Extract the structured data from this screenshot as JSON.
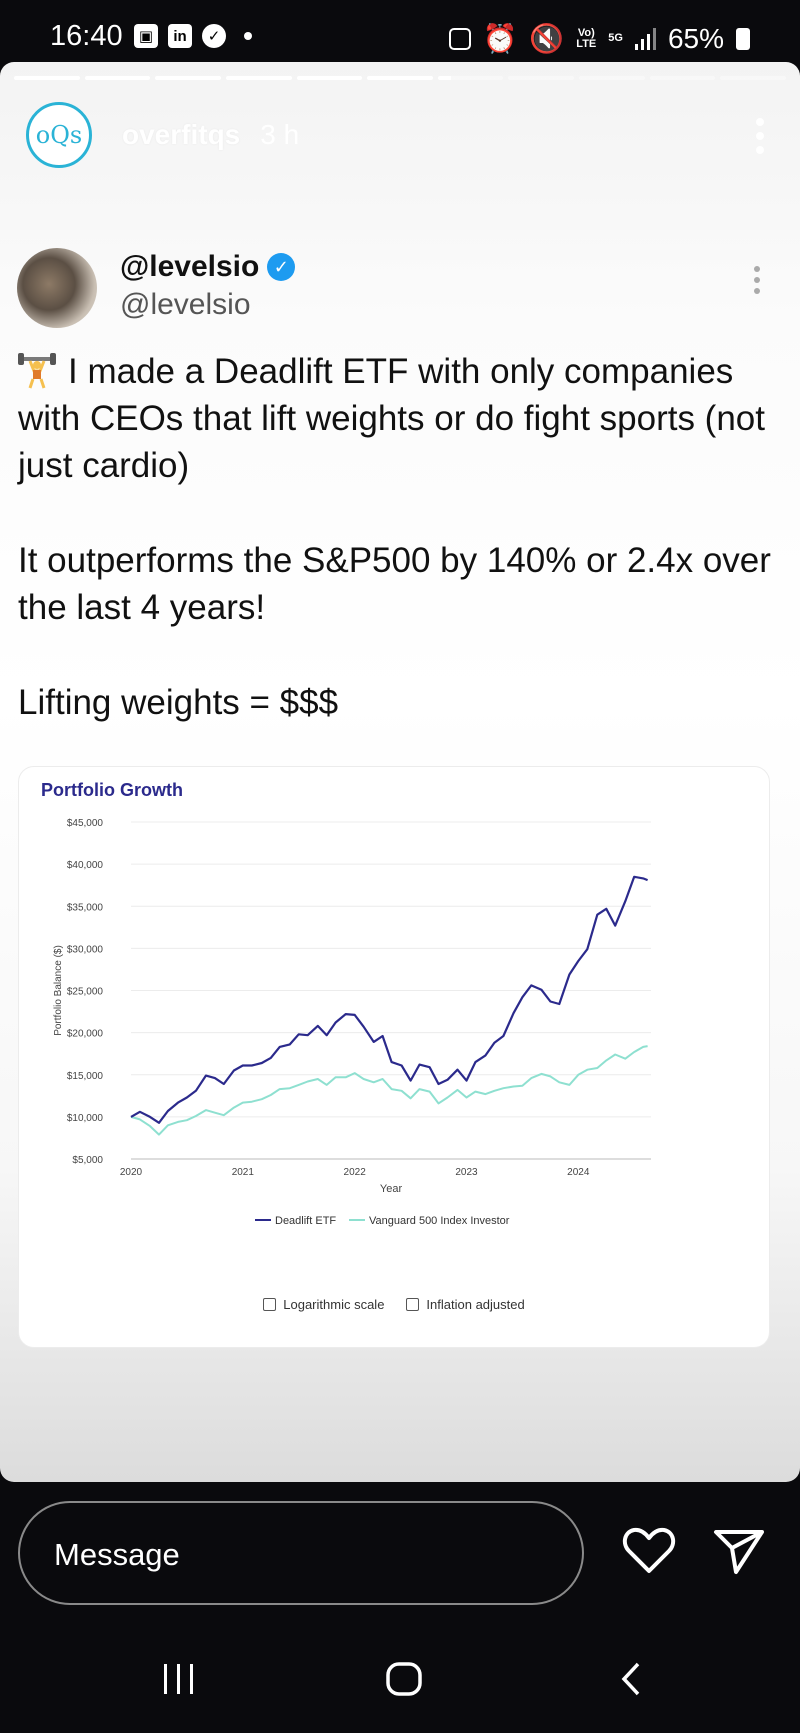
{
  "status_bar": {
    "time": "16:40",
    "battery": "65%",
    "net_top": "Vo)",
    "net_bottom": "LTE",
    "gen": "5G"
  },
  "story": {
    "username": "overfitqs",
    "avatar_text": "oQs",
    "time_ago": "3 h",
    "segments_total": 11,
    "segments_done": 6,
    "current_progress": 0.2
  },
  "tweet": {
    "display_name": "@levelsio",
    "handle": "@levelsio",
    "paragraphs": [
      "I made a Deadlift ETF with only companies with CEOs that lift weights or do fight sports (not just cardio)",
      "It outperforms the S&P500 by 140% or 2.4x over the last 4 years!",
      "Lifting weights = $$$"
    ]
  },
  "chart_data": {
    "type": "line",
    "title": "Portfolio Growth",
    "xlabel": "Year",
    "ylabel": "Portfolio Balance ($)",
    "xlim": [
      2020,
      2024.65
    ],
    "ylim": [
      5000,
      45000
    ],
    "x_ticks": [
      2020,
      2021,
      2022,
      2023,
      2024
    ],
    "y_ticks": [
      "$5,000",
      "$10,000",
      "$15,000",
      "$20,000",
      "$25,000",
      "$30,000",
      "$35,000",
      "$40,000",
      "$45,000"
    ],
    "grid": true,
    "legend_position": "bottom",
    "series": [
      {
        "name": "Deadlift ETF",
        "color": "#2b2a8c",
        "x": [
          2020,
          2020.08,
          2020.17,
          2020.25,
          2020.33,
          2020.42,
          2020.5,
          2020.58,
          2020.67,
          2020.75,
          2020.83,
          2020.92,
          2021,
          2021.08,
          2021.17,
          2021.25,
          2021.33,
          2021.42,
          2021.5,
          2021.58,
          2021.67,
          2021.75,
          2021.83,
          2021.92,
          2022,
          2022.08,
          2022.17,
          2022.25,
          2022.33,
          2022.42,
          2022.5,
          2022.58,
          2022.67,
          2022.75,
          2022.83,
          2022.92,
          2023,
          2023.08,
          2023.17,
          2023.25,
          2023.33,
          2023.42,
          2023.5,
          2023.58,
          2023.67,
          2023.75,
          2023.83,
          2023.92,
          2024,
          2024.08,
          2024.17,
          2024.25,
          2024.33,
          2024.42,
          2024.5,
          2024.58,
          2024.62
        ],
        "y": [
          10000,
          10600,
          10000,
          9300,
          10700,
          11700,
          12300,
          13100,
          14900,
          14600,
          13900,
          15500,
          16100,
          16100,
          16400,
          17000,
          18300,
          18600,
          19800,
          19700,
          20800,
          19700,
          21200,
          22200,
          22100,
          20700,
          18900,
          19600,
          16500,
          16100,
          14300,
          16200,
          15900,
          13900,
          14400,
          15600,
          14300,
          16500,
          17300,
          18800,
          19600,
          22300,
          24200,
          25600,
          25100,
          23700,
          23400,
          26900,
          28500,
          29900,
          34000,
          34700,
          32700,
          35600,
          38500,
          38300,
          38100
        ]
      },
      {
        "name": "Vanguard 500 Index Investor",
        "color": "#8ee0d0",
        "x": [
          2020,
          2020.08,
          2020.17,
          2020.25,
          2020.33,
          2020.42,
          2020.5,
          2020.58,
          2020.67,
          2020.75,
          2020.83,
          2020.92,
          2021,
          2021.08,
          2021.17,
          2021.25,
          2021.33,
          2021.42,
          2021.5,
          2021.58,
          2021.67,
          2021.75,
          2021.83,
          2021.92,
          2022,
          2022.08,
          2022.17,
          2022.25,
          2022.33,
          2022.42,
          2022.5,
          2022.58,
          2022.67,
          2022.75,
          2022.83,
          2022.92,
          2023,
          2023.08,
          2023.17,
          2023.25,
          2023.33,
          2023.42,
          2023.5,
          2023.58,
          2023.67,
          2023.75,
          2023.83,
          2023.92,
          2024,
          2024.08,
          2024.17,
          2024.25,
          2024.33,
          2024.42,
          2024.5,
          2024.58,
          2024.62
        ],
        "y": [
          10000,
          9700,
          8900,
          7900,
          9000,
          9400,
          9600,
          10100,
          10800,
          10500,
          10200,
          11100,
          11700,
          11800,
          12100,
          12600,
          13300,
          13400,
          13800,
          14200,
          14500,
          13800,
          14700,
          14700,
          15200,
          14500,
          14100,
          14500,
          13300,
          13100,
          12200,
          13300,
          13000,
          11600,
          12300,
          13200,
          12300,
          13000,
          12700,
          13100,
          13400,
          13600,
          13700,
          14600,
          15100,
          14800,
          14100,
          13800,
          15000,
          15600,
          15800,
          16700,
          17400,
          16900,
          17700,
          18300,
          18400
        ]
      }
    ]
  },
  "chart_controls": {
    "log_label": "Logarithmic scale",
    "inflation_label": "Inflation adjusted"
  },
  "reply": {
    "placeholder": "Message"
  }
}
